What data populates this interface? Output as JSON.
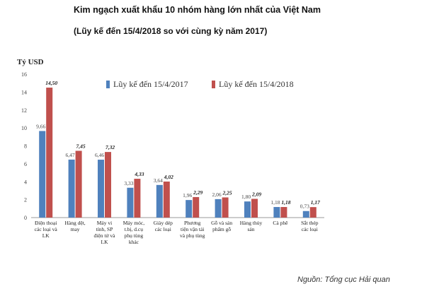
{
  "header": {
    "title": "Kim ngạch xuất khẩu 10 nhóm hàng lớn nhất của Việt Nam",
    "subtitle": "(Lũy kế đến 15/4/2018 so với cùng kỳ năm 2017)"
  },
  "source": "Nguồn: Tổng cục Hải quan",
  "chart_data": {
    "type": "bar",
    "title": "Kim ngạch xuất khẩu 10 nhóm hàng lớn nhất của Việt Nam",
    "subtitle": "(Lũy kế đến 15/4/2018 so với cùng kỳ năm 2017)",
    "ylabel": "Tỷ USD",
    "xlabel": "",
    "ylim": [
      0,
      16
    ],
    "yticks": [
      0,
      2,
      4,
      6,
      8,
      10,
      12,
      14,
      16
    ],
    "grid": false,
    "legend_position": "top",
    "categories": [
      [
        "Điện thoại",
        "các loại và",
        "LK"
      ],
      [
        "Hàng dệt,",
        "may"
      ],
      [
        "Máy vi",
        "tính, SP",
        "điện tử và",
        "LK"
      ],
      [
        "Máy móc,",
        "t.bị, d.cụ",
        "phụ tùng",
        "khác"
      ],
      [
        "Giày dép",
        "các loại"
      ],
      [
        "Phương",
        "tiện vận tải",
        "và phụ tùng"
      ],
      [
        "Gỗ và sản",
        "phẩm gỗ"
      ],
      [
        "Hàng thủy",
        "sản"
      ],
      [
        "Cà phê"
      ],
      [
        "Sắt thép",
        "các loại"
      ]
    ],
    "series": [
      {
        "name": "Lũy kế đến 15/4/2017",
        "color": "#4f81bd",
        "values": [
          9.66,
          6.47,
          6.46,
          3.33,
          3.64,
          1.96,
          2.06,
          1.8,
          1.18,
          0.73
        ],
        "labels": [
          "9,66",
          "6,47",
          "6,46",
          "3,33",
          "3,64",
          "1,96",
          "2,06",
          "1,80",
          "1,18",
          "0,73"
        ]
      },
      {
        "name": "Lũy kế đến 15/4/2018",
        "color": "#c0504d",
        "values": [
          14.5,
          7.45,
          7.32,
          4.33,
          4.02,
          2.29,
          2.25,
          2.09,
          1.18,
          1.17
        ],
        "labels": [
          "14,50",
          "7,45",
          "7,32",
          "4,33",
          "4,02",
          "2,29",
          "2,25",
          "2,09",
          "1,18",
          "1,17"
        ]
      }
    ]
  }
}
